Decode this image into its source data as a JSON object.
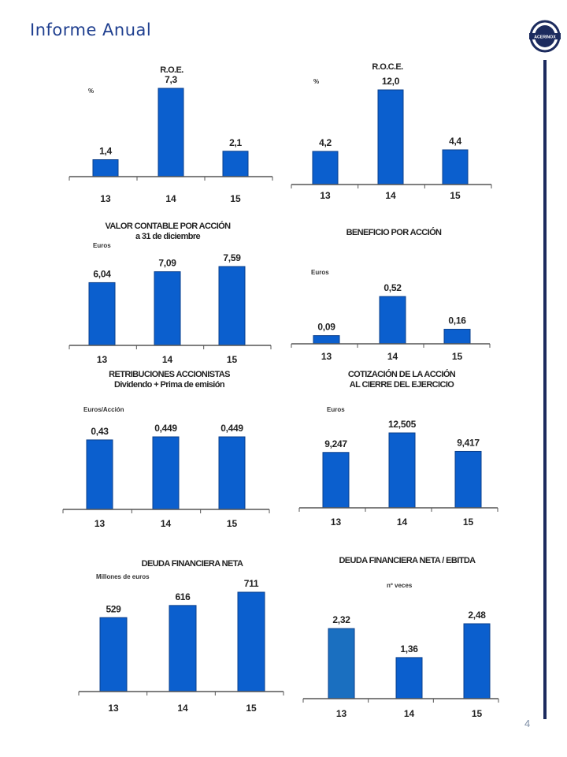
{
  "header": {
    "title": "Informe Anual",
    "logo_text": "ACERINOX",
    "page_number": "4"
  },
  "colors": {
    "bar": "#0b5fce",
    "bar_dark": "#0a3f8c",
    "bar_highlight": "#1a6fc0",
    "axis": "#555555",
    "rule": "#1c2b5e",
    "title": "#1f3f8f"
  },
  "chart_data": [
    {
      "type": "bar",
      "title_lines": [
        "R.O.E."
      ],
      "unit": "%",
      "categories": [
        "13",
        "14",
        "15"
      ],
      "values": [
        1.4,
        7.3,
        2.1
      ],
      "labels": [
        "1,4",
        "7,3",
        "2,1"
      ]
    },
    {
      "type": "bar",
      "title_lines": [
        "R.O.C.E."
      ],
      "unit": "%",
      "categories": [
        "13",
        "14",
        "15"
      ],
      "values": [
        4.2,
        12.0,
        4.4
      ],
      "labels": [
        "4,2",
        "12,0",
        "4,4"
      ]
    },
    {
      "type": "bar",
      "title_lines": [
        "VALOR CONTABLE POR ACCIÓN",
        "a 31 de diciembre"
      ],
      "unit": "Euros",
      "categories": [
        "13",
        "14",
        "15"
      ],
      "values": [
        6.04,
        7.09,
        7.59
      ],
      "labels": [
        "6,04",
        "7,09",
        "7,59"
      ]
    },
    {
      "type": "bar",
      "title_lines": [
        "BENEFICIO POR ACCIÓN"
      ],
      "unit": "Euros",
      "categories": [
        "13",
        "14",
        "15"
      ],
      "values": [
        0.09,
        0.52,
        0.16
      ],
      "labels": [
        "0,09",
        "0,52",
        "0,16"
      ]
    },
    {
      "type": "bar",
      "title_lines": [
        "RETRIBUCIONES ACCIONISTAS",
        "Dividendo + Prima de emisión"
      ],
      "unit": "Euros/Acción",
      "categories": [
        "13",
        "14",
        "15"
      ],
      "values": [
        0.43,
        0.449,
        0.449
      ],
      "labels": [
        "0,43",
        "0,449",
        "0,449"
      ]
    },
    {
      "type": "bar",
      "title_lines": [
        "COTIZACIÓN DE LA ACCIÓN",
        "AL CIERRE DEL EJERCICIO"
      ],
      "unit": "Euros",
      "categories": [
        "13",
        "14",
        "15"
      ],
      "values": [
        9.247,
        12.505,
        9.417
      ],
      "labels": [
        "9,247",
        "12,505",
        "9,417"
      ]
    },
    {
      "type": "bar",
      "title_lines": [
        "DEUDA FINANCIERA NETA"
      ],
      "unit": "Millones de euros",
      "categories": [
        "13",
        "14",
        "15"
      ],
      "values": [
        529,
        616,
        711
      ],
      "labels": [
        "529",
        "616",
        "711"
      ]
    },
    {
      "type": "bar",
      "title_lines": [
        "DEUDA FINANCIERA NETA / EBITDA"
      ],
      "unit": "nº veces",
      "categories": [
        "13",
        "14",
        "15"
      ],
      "values": [
        2.32,
        1.36,
        2.48
      ],
      "labels": [
        "2,32",
        "1,36",
        "2,48"
      ]
    }
  ]
}
